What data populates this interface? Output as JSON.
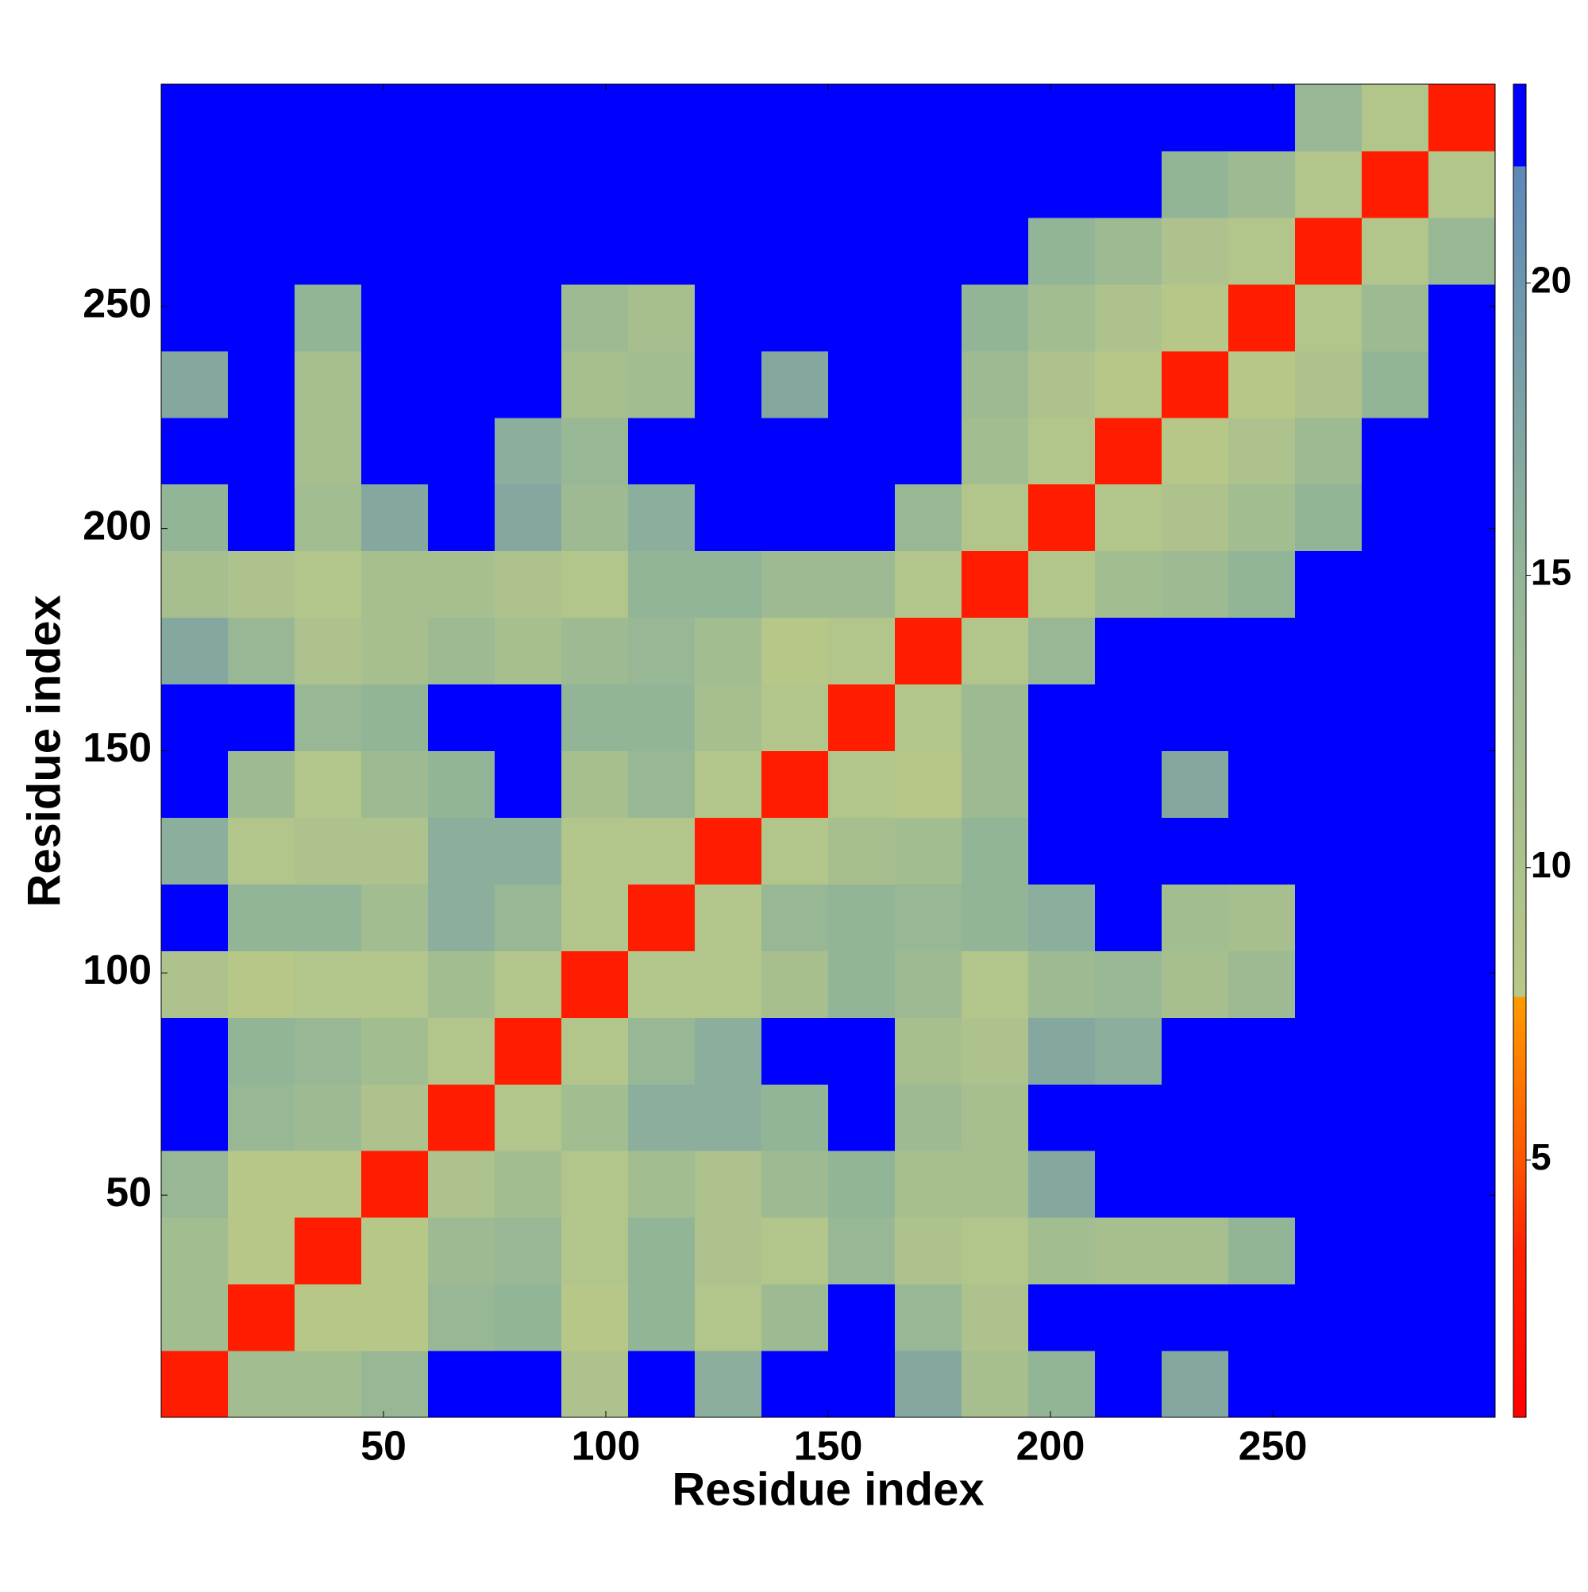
{
  "chart_data": {
    "type": "heatmap",
    "xlabel": "Residue index",
    "ylabel": "Residue index",
    "xlim": [
      0,
      300
    ],
    "ylim": [
      0,
      300
    ],
    "xticks": [
      50,
      100,
      150,
      200,
      250
    ],
    "yticks": [
      50,
      100,
      150,
      200,
      250
    ],
    "clim": [
      0.6,
      23.4
    ],
    "cticks": [
      5,
      10,
      15,
      20
    ],
    "colorscale": [
      [
        0.6,
        "#ff0000"
      ],
      [
        3.5,
        "#ff2200"
      ],
      [
        5,
        "#ff5500"
      ],
      [
        7.75,
        "#ff9900"
      ],
      [
        7.76,
        "#b8c887"
      ],
      [
        15,
        "#93b597"
      ],
      [
        22,
        "#5d88b8"
      ],
      [
        22.01,
        "#0000ff"
      ],
      [
        23.4,
        "#0000ff"
      ]
    ],
    "z": [
      [
        3,
        12,
        12,
        14,
        23,
        23,
        10,
        23,
        16,
        23,
        23,
        17,
        11,
        15,
        23,
        17,
        23,
        23,
        23,
        23
      ],
      [
        12,
        3,
        8,
        8,
        14,
        15,
        8,
        15,
        9,
        13,
        23,
        14,
        10,
        23,
        23,
        23,
        23,
        23,
        23,
        23
      ],
      [
        12,
        8,
        3,
        8,
        13,
        14,
        9,
        15,
        10,
        9,
        14,
        10,
        9,
        12,
        11,
        11,
        15,
        23,
        23,
        23
      ],
      [
        14,
        8,
        8,
        3,
        10,
        12,
        9,
        12,
        10,
        13,
        15,
        11,
        11,
        17,
        23,
        23,
        23,
        23,
        23,
        23
      ],
      [
        23,
        14,
        13,
        10,
        3,
        9,
        12,
        16,
        16,
        15,
        23,
        13,
        11,
        23,
        23,
        23,
        23,
        23,
        23,
        23
      ],
      [
        23,
        15,
        14,
        12,
        9,
        3,
        9,
        14,
        16,
        23,
        23,
        11,
        10,
        17,
        16,
        23,
        23,
        23,
        23,
        23
      ],
      [
        10,
        8,
        9,
        9,
        12,
        9,
        3,
        9,
        9,
        11,
        15,
        13,
        9,
        13,
        14,
        11,
        13,
        23,
        23,
        23
      ],
      [
        23,
        15,
        15,
        12,
        16,
        14,
        9,
        3,
        9,
        14,
        15,
        14,
        15,
        16,
        23,
        12,
        11,
        23,
        23,
        23
      ],
      [
        16,
        9,
        10,
        10,
        16,
        16,
        9,
        9,
        3,
        9,
        11,
        12,
        15,
        23,
        23,
        23,
        23,
        23,
        23,
        23
      ],
      [
        23,
        13,
        9,
        13,
        15,
        23,
        11,
        14,
        9,
        3,
        9,
        8,
        13,
        23,
        23,
        17,
        23,
        23,
        23,
        23
      ],
      [
        23,
        23,
        14,
        15,
        23,
        23,
        15,
        15,
        11,
        9,
        3,
        9,
        13,
        23,
        23,
        23,
        23,
        23,
        23,
        23
      ],
      [
        17,
        14,
        10,
        11,
        13,
        11,
        13,
        14,
        12,
        8,
        9,
        3,
        9,
        14,
        23,
        23,
        23,
        23,
        23,
        23
      ],
      [
        11,
        10,
        9,
        11,
        11,
        10,
        9,
        15,
        15,
        13,
        13,
        9,
        3,
        9,
        12,
        13,
        15,
        23,
        23,
        23
      ],
      [
        15,
        23,
        12,
        17,
        23,
        17,
        13,
        16,
        23,
        23,
        23,
        14,
        9,
        3,
        9,
        10,
        12,
        15,
        23,
        23
      ],
      [
        23,
        23,
        11,
        23,
        23,
        16,
        14,
        23,
        23,
        23,
        23,
        23,
        12,
        9,
        3,
        8,
        10,
        13,
        23,
        23
      ],
      [
        17,
        23,
        11,
        23,
        23,
        23,
        11,
        12,
        23,
        17,
        23,
        23,
        13,
        10,
        8,
        3,
        8,
        10,
        15,
        23
      ],
      [
        23,
        23,
        15,
        23,
        23,
        23,
        13,
        11,
        23,
        23,
        23,
        23,
        15,
        12,
        10,
        8,
        3,
        9,
        13,
        23
      ],
      [
        23,
        23,
        23,
        23,
        23,
        23,
        23,
        23,
        23,
        23,
        23,
        23,
        23,
        15,
        13,
        10,
        9,
        3,
        9,
        14
      ],
      [
        23,
        23,
        23,
        23,
        23,
        23,
        23,
        23,
        23,
        23,
        23,
        23,
        23,
        23,
        23,
        15,
        13,
        9,
        3,
        9
      ],
      [
        23,
        23,
        23,
        23,
        23,
        23,
        23,
        23,
        23,
        23,
        23,
        23,
        23,
        23,
        23,
        23,
        23,
        14,
        9,
        3
      ]
    ]
  }
}
